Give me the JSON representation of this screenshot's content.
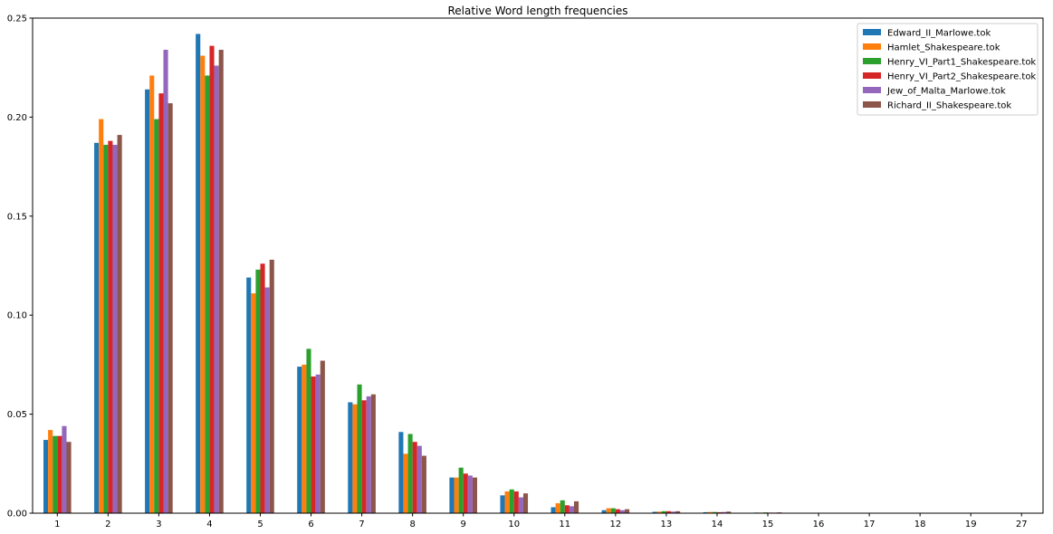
{
  "chart_data": {
    "type": "bar",
    "title": "Relative Word length frequencies",
    "xlabel": "",
    "ylabel": "",
    "categories": [
      "1",
      "2",
      "3",
      "4",
      "5",
      "6",
      "7",
      "8",
      "9",
      "10",
      "11",
      "12",
      "13",
      "14",
      "15",
      "16",
      "17",
      "18",
      "19",
      "27"
    ],
    "ylim": [
      0,
      0.25
    ],
    "yticks": [
      "0.00",
      "0.05",
      "0.10",
      "0.15",
      "0.20",
      "0.25"
    ],
    "grid": false,
    "legend_position": "top-right",
    "colors": [
      "#1f77b4",
      "#ff7f0e",
      "#2ca02c",
      "#d62728",
      "#9467bd",
      "#8c564b"
    ],
    "series": [
      {
        "name": "Edward_II_Marlowe.tok",
        "values": [
          0.037,
          0.187,
          0.214,
          0.242,
          0.119,
          0.074,
          0.056,
          0.041,
          0.018,
          0.009,
          0.003,
          0.0015,
          0.0007,
          0.0005,
          0.0003,
          5e-05,
          3e-05,
          1e-05,
          0,
          0
        ]
      },
      {
        "name": "Hamlet_Shakespeare.tok",
        "values": [
          0.042,
          0.199,
          0.221,
          0.231,
          0.111,
          0.075,
          0.055,
          0.03,
          0.018,
          0.011,
          0.005,
          0.0025,
          0.0008,
          0.0006,
          0.0003,
          0.0001,
          3e-05,
          1e-05,
          0,
          0
        ]
      },
      {
        "name": "Henry_VI_Part1_Shakespeare.tok",
        "values": [
          0.039,
          0.186,
          0.199,
          0.221,
          0.123,
          0.083,
          0.065,
          0.04,
          0.023,
          0.012,
          0.0065,
          0.0025,
          0.001,
          0.0006,
          0.0004,
          0.0001,
          3e-05,
          1e-05,
          0,
          0
        ]
      },
      {
        "name": "Henry_VI_Part2_Shakespeare.tok",
        "values": [
          0.039,
          0.188,
          0.212,
          0.236,
          0.126,
          0.069,
          0.057,
          0.036,
          0.02,
          0.011,
          0.004,
          0.002,
          0.001,
          0.0005,
          0.0003,
          0.0001,
          3e-05,
          1e-05,
          0,
          0
        ]
      },
      {
        "name": "Jew_of_Malta_Marlowe.tok",
        "values": [
          0.044,
          0.186,
          0.234,
          0.226,
          0.114,
          0.07,
          0.059,
          0.034,
          0.019,
          0.008,
          0.0035,
          0.0015,
          0.0008,
          0.0006,
          0.0003,
          0.0001,
          3e-05,
          1e-05,
          0,
          0
        ]
      },
      {
        "name": "Richard_II_Shakespeare.tok",
        "values": [
          0.036,
          0.191,
          0.207,
          0.234,
          0.128,
          0.077,
          0.06,
          0.029,
          0.018,
          0.01,
          0.006,
          0.002,
          0.001,
          0.0008,
          0.0004,
          0.0001,
          3e-05,
          1e-05,
          0,
          1e-05
        ]
      }
    ]
  }
}
